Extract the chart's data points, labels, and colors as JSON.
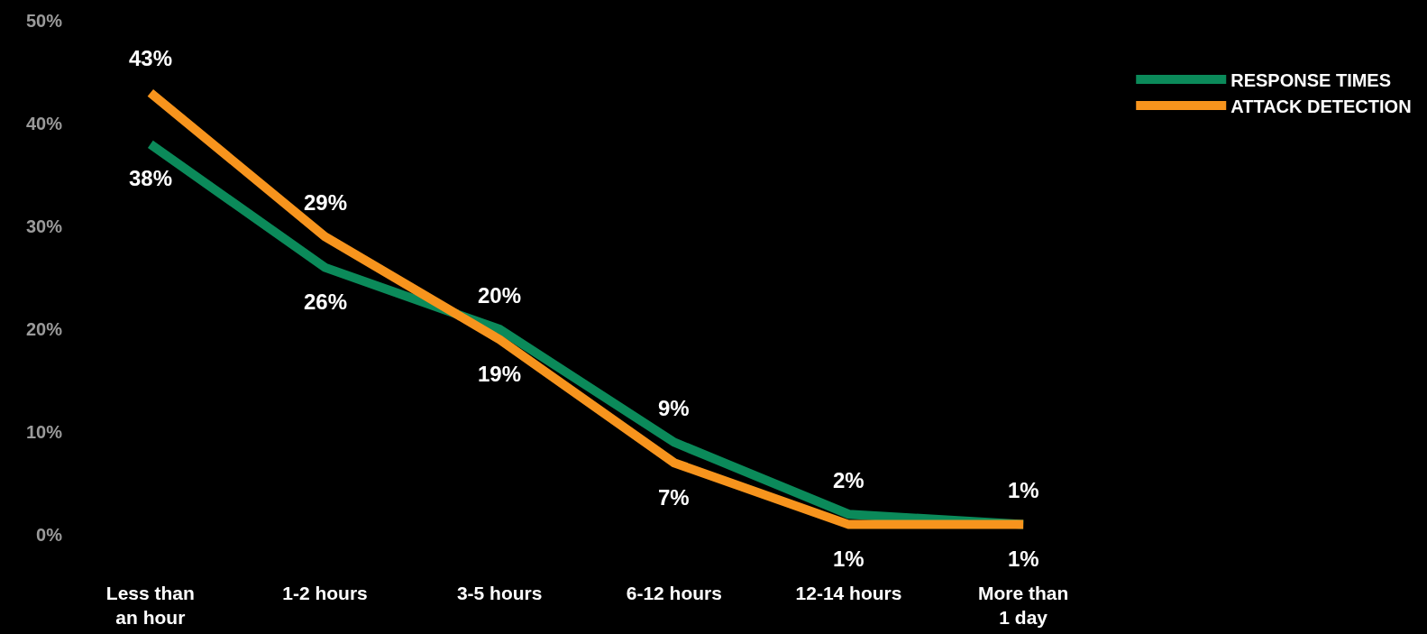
{
  "chart_data": {
    "type": "line",
    "categories": [
      "Less than an hour",
      "1-2 hours",
      "3-5 hours",
      "6-12 hours",
      "12-14 hours",
      "More than 1 day"
    ],
    "series": [
      {
        "name": "RESPONSE TIMES",
        "color": "#0b8a5a",
        "values": [
          38,
          26,
          20,
          9,
          2,
          1
        ],
        "value_labels": [
          "38%",
          "26%",
          "20%",
          "9%",
          "2%",
          "1%"
        ]
      },
      {
        "name": "ATTACK DETECTION",
        "color": "#f7941d",
        "values": [
          43,
          29,
          19,
          7,
          1,
          1
        ],
        "value_labels": [
          "43%",
          "29%",
          "19%",
          "7%",
          "1%",
          "1%"
        ]
      }
    ],
    "ylim": [
      0,
      50
    ],
    "yticks": [
      {
        "value": 0,
        "label": "0%"
      },
      {
        "value": 10,
        "label": "10%"
      },
      {
        "value": 20,
        "label": "20%"
      },
      {
        "value": 30,
        "label": "30%"
      },
      {
        "value": 40,
        "label": "40%"
      },
      {
        "value": 50,
        "label": "50%"
      }
    ],
    "grid": false,
    "legend": "right",
    "marker": "none",
    "line_style": "solid"
  }
}
